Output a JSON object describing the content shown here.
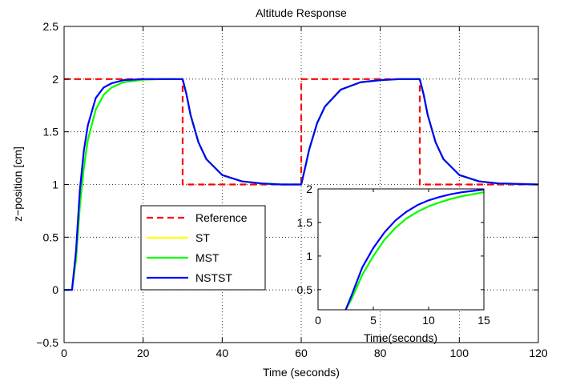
{
  "chart_data": [
    {
      "type": "line",
      "title": "Altitude Response",
      "xlabel": "Time (seconds)",
      "ylabel": "z−position [cm]",
      "xlim": [
        0,
        120
      ],
      "ylim": [
        -0.5,
        2.5
      ],
      "xticks": [
        0,
        20,
        40,
        60,
        80,
        100,
        120
      ],
      "yticks": [
        -0.5,
        0,
        0.5,
        1,
        1.5,
        2,
        2.5
      ],
      "ytick_labels": [
        "−0.5",
        "0",
        "0.5",
        "1",
        "1.5",
        "2",
        "2.5"
      ],
      "grid": true,
      "legend_placement": "lower-left",
      "series": [
        {
          "name": "Reference",
          "color": "#ff0000",
          "style": "dashed",
          "x": [
            0,
            30,
            30,
            60,
            60,
            90,
            90,
            120
          ],
          "y": [
            2,
            2,
            1,
            1,
            2,
            2,
            1,
            1
          ]
        },
        {
          "name": "ST",
          "color": "#ffff00",
          "style": "solid",
          "x": [
            0,
            2,
            3,
            4,
            5,
            6,
            8,
            10,
            12,
            15,
            20,
            25,
            30,
            31,
            32,
            34,
            36,
            40,
            45,
            50,
            55,
            60,
            61,
            62,
            64,
            66,
            70,
            75,
            80,
            85,
            90,
            91,
            92,
            94,
            96,
            100,
            105,
            110,
            120
          ],
          "y": [
            0,
            0,
            0.28,
            0.8,
            1.16,
            1.42,
            1.71,
            1.85,
            1.92,
            1.97,
            1.995,
            2,
            2,
            1.85,
            1.66,
            1.4,
            1.24,
            1.09,
            1.03,
            1.01,
            1.0,
            1.0,
            1.16,
            1.33,
            1.58,
            1.74,
            1.9,
            1.97,
            1.99,
            2,
            2,
            1.85,
            1.66,
            1.4,
            1.24,
            1.09,
            1.03,
            1.01,
            1.0
          ]
        },
        {
          "name": "MST",
          "color": "#00ff00",
          "style": "solid",
          "x": [
            0,
            2,
            3,
            4,
            5,
            6,
            8,
            10,
            12,
            15,
            20,
            25,
            30,
            31,
            32,
            34,
            36,
            40,
            45,
            50,
            55,
            60,
            61,
            62,
            64,
            66,
            70,
            75,
            80,
            85,
            90,
            91,
            92,
            94,
            96,
            100,
            105,
            110,
            120
          ],
          "y": [
            0,
            0,
            0.28,
            0.8,
            1.16,
            1.42,
            1.71,
            1.85,
            1.92,
            1.97,
            1.995,
            2,
            2,
            1.85,
            1.66,
            1.4,
            1.24,
            1.09,
            1.03,
            1.01,
            1.0,
            1.0,
            1.16,
            1.33,
            1.58,
            1.74,
            1.9,
            1.97,
            1.99,
            2,
            2,
            1.85,
            1.66,
            1.4,
            1.24,
            1.09,
            1.03,
            1.01,
            1.0
          ]
        },
        {
          "name": "NSTST",
          "color": "#0000ff",
          "style": "solid",
          "x": [
            0,
            2,
            3,
            4,
            5,
            6,
            8,
            10,
            12,
            15,
            20,
            25,
            30,
            31,
            32,
            34,
            36,
            40,
            45,
            50,
            55,
            60,
            61,
            62,
            64,
            66,
            70,
            75,
            80,
            85,
            90,
            91,
            92,
            94,
            96,
            100,
            105,
            110,
            120
          ],
          "y": [
            0,
            0,
            0.36,
            0.95,
            1.32,
            1.56,
            1.82,
            1.92,
            1.96,
            1.99,
            2,
            2,
            2,
            1.85,
            1.66,
            1.4,
            1.24,
            1.09,
            1.03,
            1.01,
            1.0,
            1.0,
            1.16,
            1.33,
            1.58,
            1.74,
            1.9,
            1.97,
            1.99,
            2,
            2,
            1.85,
            1.66,
            1.4,
            1.24,
            1.09,
            1.03,
            1.01,
            1.0
          ]
        }
      ]
    },
    {
      "type": "line",
      "title": "",
      "xlabel": "Time(seconds)",
      "ylabel": "",
      "xlim": [
        0,
        15
      ],
      "ylim": [
        0.2,
        2
      ],
      "xticks": [
        0,
        5,
        10,
        15
      ],
      "yticks": [
        0.5,
        1,
        1.5,
        2
      ],
      "ytick_labels": [
        "0.5",
        "1",
        "1.5",
        "2"
      ],
      "grid": false,
      "series": [
        {
          "color": "#ffff00",
          "style": "solid",
          "x": [
            2.5,
            3,
            4,
            5,
            6,
            7,
            8,
            9,
            10,
            11,
            12,
            13,
            14,
            15
          ],
          "y": [
            0.2,
            0.35,
            0.72,
            1.0,
            1.24,
            1.42,
            1.56,
            1.66,
            1.74,
            1.8,
            1.85,
            1.89,
            1.92,
            1.95
          ]
        },
        {
          "color": "#00ff00",
          "style": "solid",
          "x": [
            2.5,
            3,
            4,
            5,
            6,
            7,
            8,
            9,
            10,
            11,
            12,
            13,
            14,
            15
          ],
          "y": [
            0.2,
            0.35,
            0.72,
            1.0,
            1.24,
            1.42,
            1.56,
            1.66,
            1.74,
            1.8,
            1.85,
            1.89,
            1.92,
            1.95
          ]
        },
        {
          "color": "#0000ff",
          "style": "solid",
          "x": [
            2.5,
            3,
            4,
            5,
            6,
            7,
            8,
            9,
            10,
            11,
            12,
            13,
            14,
            15
          ],
          "y": [
            0.2,
            0.4,
            0.83,
            1.12,
            1.35,
            1.53,
            1.66,
            1.76,
            1.83,
            1.88,
            1.92,
            1.95,
            1.97,
            1.99
          ]
        }
      ]
    }
  ]
}
